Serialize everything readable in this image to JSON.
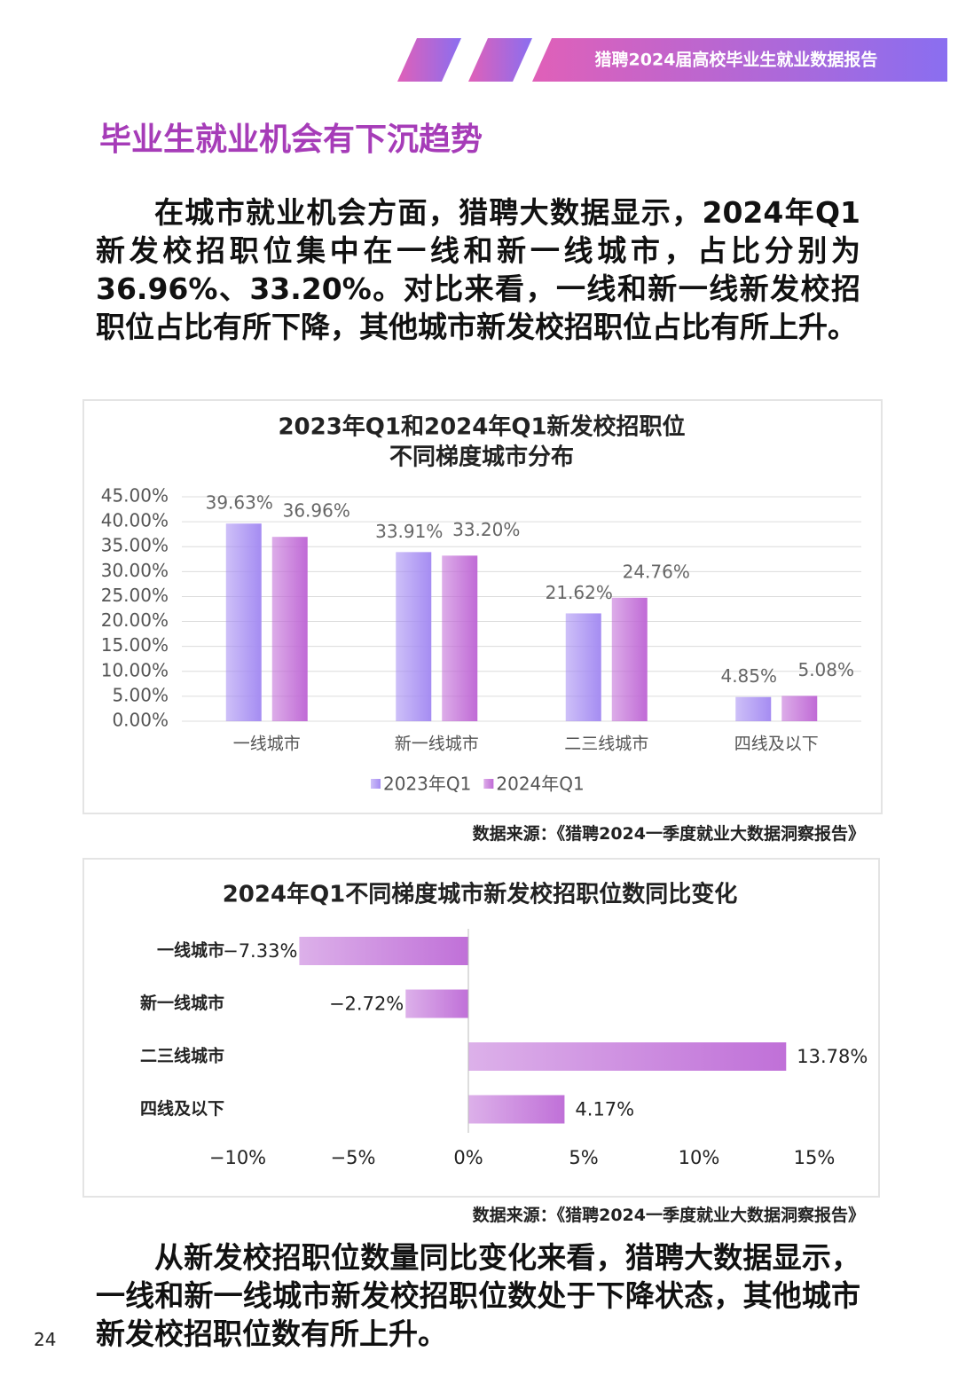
{
  "header": "猎聘2024届高校毕业生就业数据报告",
  "section_title": "毕业生就业机会有下沉趋势",
  "paragraphs": [
    "在城市就业机会方面，猎聘大数据显示，2024年Q1新发校招职位集中在一线和新一线城市，占比分别为36.96%、33.20%。对比来看，一线和新一线新发校招职位占比有所下降，其他城市新发校招职位占比有所上升。",
    "从新发校招职位数量同比变化来看，猎聘大数据显示，一线和新一线城市新发校招职位数处于下降状态，其他城市新发校招职位数有所上升。"
  ],
  "sources": [
    "数据来源：《猎聘2024一季度就业大数据洞察报告》",
    "数据来源：《猎聘2024一季度就业大数据洞察报告》"
  ],
  "page_number": "24",
  "chart_data": [
    {
      "type": "bar",
      "title": [
        "2023年Q1和2024年Q1新发校招职位",
        "不同梯度城市分布"
      ],
      "categories": [
        "一线城市",
        "新一线城市",
        "二三线城市",
        "四线及以下"
      ],
      "series": [
        {
          "name": "2023年Q1",
          "color": "#a58cf2",
          "values": [
            39.63,
            33.91,
            21.62,
            4.85
          ],
          "value_labels": [
            "39.63%",
            "33.91%",
            "21.62%",
            "4.85%"
          ]
        },
        {
          "name": "2024年Q1",
          "color": "#c06ad6",
          "values": [
            36.96,
            33.2,
            24.76,
            5.08
          ],
          "value_labels": [
            "36.96%",
            "33.20%",
            "24.76%",
            "5.08%"
          ]
        }
      ],
      "ylim": [
        0,
        45
      ],
      "yticks": [
        {
          "value": 0,
          "label": "0.00%"
        },
        {
          "value": 5,
          "label": "5.00%"
        },
        {
          "value": 10,
          "label": "10.00%"
        },
        {
          "value": 15,
          "label": "15.00%"
        },
        {
          "value": 20,
          "label": "20.00%"
        },
        {
          "value": 25,
          "label": "25.00%"
        },
        {
          "value": 30,
          "label": "30.00%"
        },
        {
          "value": 35,
          "label": "35.00%"
        },
        {
          "value": 40,
          "label": "40.00%"
        },
        {
          "value": 45,
          "label": "45.00%"
        }
      ],
      "grid": true,
      "legend": "bottom"
    },
    {
      "type": "barh",
      "title": [
        "2024年Q1不同梯度城市新发校招职位数同比变化"
      ],
      "categories": [
        "一线城市",
        "新一线城市",
        "二三线城市",
        "四线及以下"
      ],
      "values": [
        -7.33,
        -2.72,
        13.78,
        4.17
      ],
      "value_labels": [
        "−7.33%",
        "−2.72%",
        "13.78%",
        "4.17%"
      ],
      "color": "#c070d8",
      "xlim": [
        -10,
        15
      ],
      "xticks": [
        {
          "value": -10,
          "label": "−10%"
        },
        {
          "value": -5,
          "label": "−5%"
        },
        {
          "value": 0,
          "label": "0%"
        },
        {
          "value": 5,
          "label": "5%"
        },
        {
          "value": 10,
          "label": "10%"
        },
        {
          "value": 15,
          "label": "15%"
        }
      ],
      "grid": false
    }
  ]
}
